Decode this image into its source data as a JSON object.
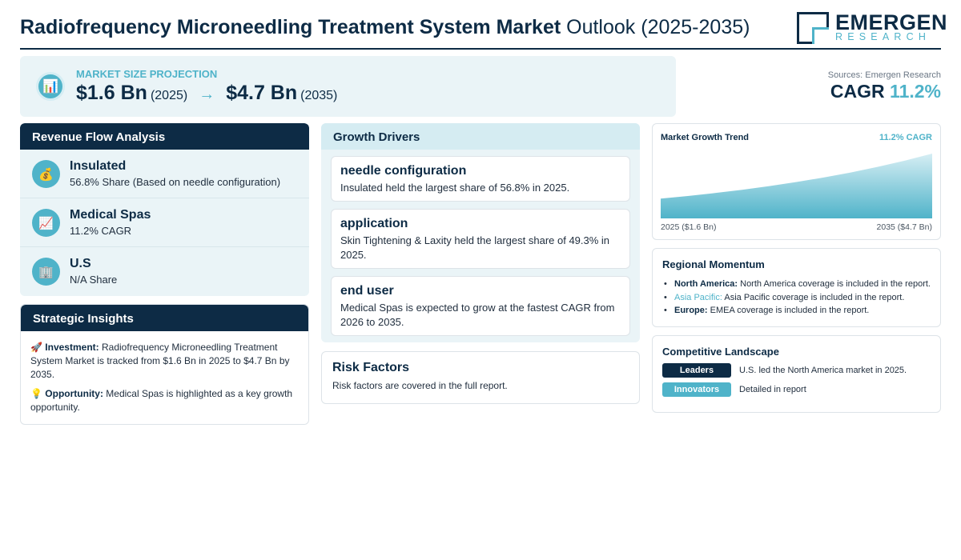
{
  "header": {
    "title_strong": "Radiofrequency Microneedling Treatment System Market",
    "title_light": "Outlook (2025-2035)",
    "logo_name": "EMERGEN",
    "logo_sub": "RESEARCH"
  },
  "projection": {
    "label": "MARKET SIZE PROJECTION",
    "start_value": "$1.6 Bn",
    "start_year": "(2025)",
    "arrow": "→",
    "end_value": "$4.7 Bn",
    "end_year": "(2035)",
    "icon": "bar-chart-icon"
  },
  "summary": {
    "sources": "Sources: Emergen Research",
    "cagr_label": "CAGR",
    "cagr_value": "11.2%"
  },
  "revenue_flow": {
    "title": "Revenue Flow Analysis",
    "items": [
      {
        "name": "Insulated",
        "sub": "56.8% Share (Based on needle configuration)",
        "icon": "money-bag-icon"
      },
      {
        "name": "Medical Spas",
        "sub": "11.2% CAGR",
        "icon": "trend-chart-icon"
      },
      {
        "name": "U.S",
        "sub": "N/A Share",
        "icon": "office-building-icon"
      }
    ]
  },
  "strategic_insights": {
    "title": "Strategic Insights",
    "investment_label": "Investment:",
    "investment_text": "Radiofrequency Microneedling Treatment System Market is tracked from $1.6 Bn in 2025 to $4.7 Bn by 2035.",
    "opportunity_label": "Opportunity:",
    "opportunity_text": "Medical Spas is highlighted as a key growth opportunity."
  },
  "growth_drivers": {
    "title": "Growth Drivers",
    "cards": [
      {
        "title": "needle configuration",
        "text": "Insulated held the largest share of 56.8% in 2025."
      },
      {
        "title": "application",
        "text": "Skin Tightening & Laxity held the largest share of 49.3% in 2025."
      },
      {
        "title": "end user",
        "text": "Medical Spas is expected to grow at the fastest CAGR from 2026 to 2035."
      }
    ]
  },
  "risk_factors": {
    "title": "Risk Factors",
    "text": "Risk factors are covered in the full report."
  },
  "growth_trend": {
    "title": "Market Growth Trend",
    "cagr": "11.2% CAGR",
    "start_label": "2025 ($1.6 Bn)",
    "end_label": "2035 ($4.7 Bn)"
  },
  "chart_data": {
    "type": "area",
    "title": "Market Growth Trend",
    "x": [
      2025,
      2035
    ],
    "values": [
      1.6,
      4.7
    ],
    "unit": "$ Bn",
    "colors": {
      "fill_top": "#d6eef4",
      "fill_bottom": "#4fb3c9"
    }
  },
  "regional_momentum": {
    "title": "Regional Momentum",
    "items": [
      {
        "region": "North America:",
        "text": "North America coverage is included in the report."
      },
      {
        "region": "Asia Pacific:",
        "text": "Asia Pacific coverage is included in the report."
      },
      {
        "region": "Europe:",
        "text": "EMEA coverage is included in the report."
      }
    ]
  },
  "competitive_landscape": {
    "title": "Competitive Landscape",
    "rows": [
      {
        "badge": "Leaders",
        "text": "U.S. led the North America market in 2025."
      },
      {
        "badge": "Innovators",
        "text": "Detailed in report"
      }
    ]
  },
  "colors": {
    "navy": "#0d2b45",
    "accent": "#4fb3c9",
    "panel_bg": "#eaf4f7"
  }
}
